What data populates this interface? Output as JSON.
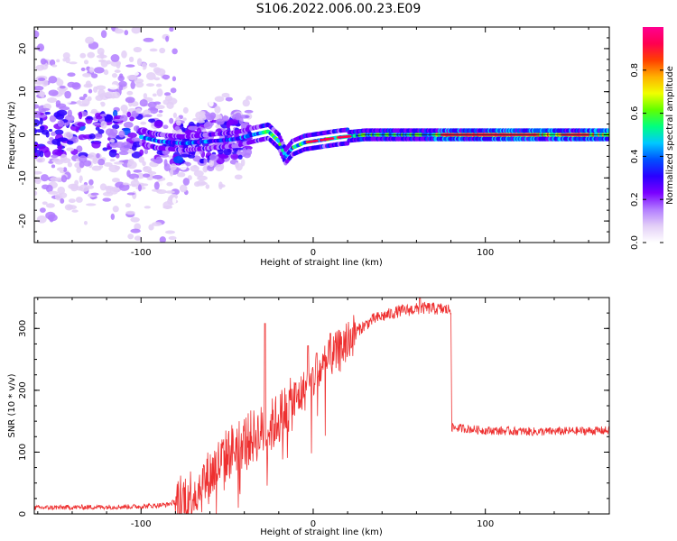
{
  "title": "S106.2022.006.00.23.E09",
  "chart_data": [
    {
      "type": "heatmap",
      "title": "",
      "xlabel": "Height of straight line (km)",
      "ylabel": "Frequency (Hz)",
      "xlim": [
        -162,
        172
      ],
      "ylim": [
        -25,
        25
      ],
      "x_ticks": [
        -100,
        0,
        100
      ],
      "y_ticks": [
        -20,
        -10,
        0,
        10,
        20
      ],
      "colorbar": {
        "label": "Normalized spectral amplitude",
        "range": [
          0.0,
          1.0
        ],
        "ticks": [
          "0.0",
          "0.2",
          "0.4",
          "0.6",
          "0.8"
        ],
        "colors": [
          "#ffffff",
          "#e3cff7",
          "#b27cff",
          "#7a00ff",
          "#2a00ff",
          "#0050ff",
          "#00c8ff",
          "#00ff80",
          "#60ff00",
          "#f0ff00",
          "#ffb000",
          "#ff4000",
          "#ff0050",
          "#ff0090"
        ]
      },
      "ridge": [
        {
          "x": -160,
          "y": 0.5
        },
        {
          "x": -140,
          "y": 0
        },
        {
          "x": -120,
          "y": 0.2
        },
        {
          "x": -100,
          "y": -0.5
        },
        {
          "x": -90,
          "y": -1.5
        },
        {
          "x": -75,
          "y": -2
        },
        {
          "x": -60,
          "y": -1.5
        },
        {
          "x": -45,
          "y": -1
        },
        {
          "x": -35,
          "y": 0
        },
        {
          "x": -26,
          "y": 0.8
        },
        {
          "x": -20,
          "y": -1.5
        },
        {
          "x": -16,
          "y": -5
        },
        {
          "x": -12,
          "y": -3
        },
        {
          "x": -5,
          "y": -1.8
        },
        {
          "x": 5,
          "y": -1.2
        },
        {
          "x": 15,
          "y": -0.6
        },
        {
          "x": 30,
          "y": 0
        },
        {
          "x": 60,
          "y": 0
        },
        {
          "x": 80,
          "y": 0
        },
        {
          "x": 120,
          "y": 0
        },
        {
          "x": 150,
          "y": 0
        },
        {
          "x": 170,
          "y": 0
        }
      ]
    },
    {
      "type": "line",
      "title": "",
      "xlabel": "Height of straight line (km)",
      "ylabel": "SNR (10 * v/v)",
      "xlim": [
        -162,
        172
      ],
      "ylim": [
        0,
        350
      ],
      "x_ticks": [
        -100,
        0,
        100
      ],
      "y_ticks": [
        0,
        100,
        200,
        300
      ],
      "color": "#ee3030",
      "trend": [
        {
          "x": -162,
          "y": 10
        },
        {
          "x": -100,
          "y": 12
        },
        {
          "x": -85,
          "y": 15
        },
        {
          "x": -75,
          "y": 25
        },
        {
          "x": -65,
          "y": 45
        },
        {
          "x": -55,
          "y": 80
        },
        {
          "x": -45,
          "y": 110
        },
        {
          "x": -35,
          "y": 125
        },
        {
          "x": -25,
          "y": 140
        },
        {
          "x": -15,
          "y": 170
        },
        {
          "x": -5,
          "y": 200
        },
        {
          "x": 5,
          "y": 235
        },
        {
          "x": 15,
          "y": 265
        },
        {
          "x": 25,
          "y": 295
        },
        {
          "x": 35,
          "y": 315
        },
        {
          "x": 50,
          "y": 328
        },
        {
          "x": 65,
          "y": 333
        },
        {
          "x": 80,
          "y": 330
        },
        {
          "x": 80.5,
          "y": 140
        },
        {
          "x": 100,
          "y": 135
        },
        {
          "x": 130,
          "y": 133
        },
        {
          "x": 172,
          "y": 135
        }
      ],
      "spikes": [
        {
          "x": -28,
          "y": 308
        },
        {
          "x": -3,
          "y": 272
        },
        {
          "x": 2,
          "y": 260
        },
        {
          "x": 10,
          "y": 292
        },
        {
          "x": 62,
          "y": 350
        }
      ]
    }
  ]
}
